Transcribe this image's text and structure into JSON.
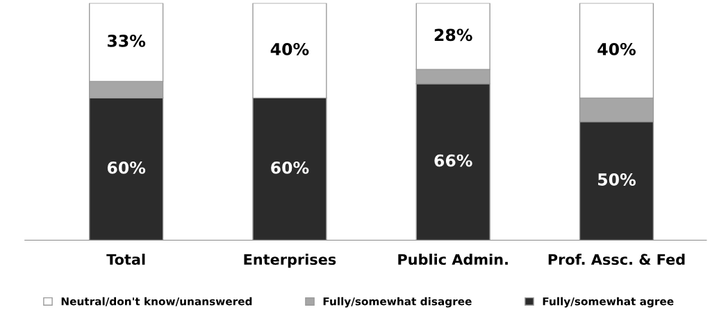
{
  "chart_data": {
    "type": "bar",
    "stacked": true,
    "categories": [
      "Total",
      "Enterprises",
      "Public Admin.",
      "Prof. Assc. & Fed"
    ],
    "series": [
      {
        "name": "Fully/somewhat agree",
        "color": "#2b2b2b",
        "values": [
          60,
          60,
          66,
          50
        ],
        "value_labels": [
          "60%",
          "60%",
          "66%",
          "50%"
        ]
      },
      {
        "name": "Fully/somewhat disagree",
        "color": "#a6a6a6",
        "values": [
          7,
          0,
          6,
          10
        ],
        "value_labels": [
          null,
          null,
          null,
          null
        ]
      },
      {
        "name": "Neutral/don't know/unanswered",
        "color": "#ffffff",
        "values": [
          33,
          40,
          28,
          40
        ],
        "value_labels": [
          "33%",
          "40%",
          "28%",
          "40%"
        ]
      }
    ],
    "ylim": [
      0,
      100
    ],
    "tick_labels": "x",
    "grid": false,
    "legend": "bottom"
  }
}
